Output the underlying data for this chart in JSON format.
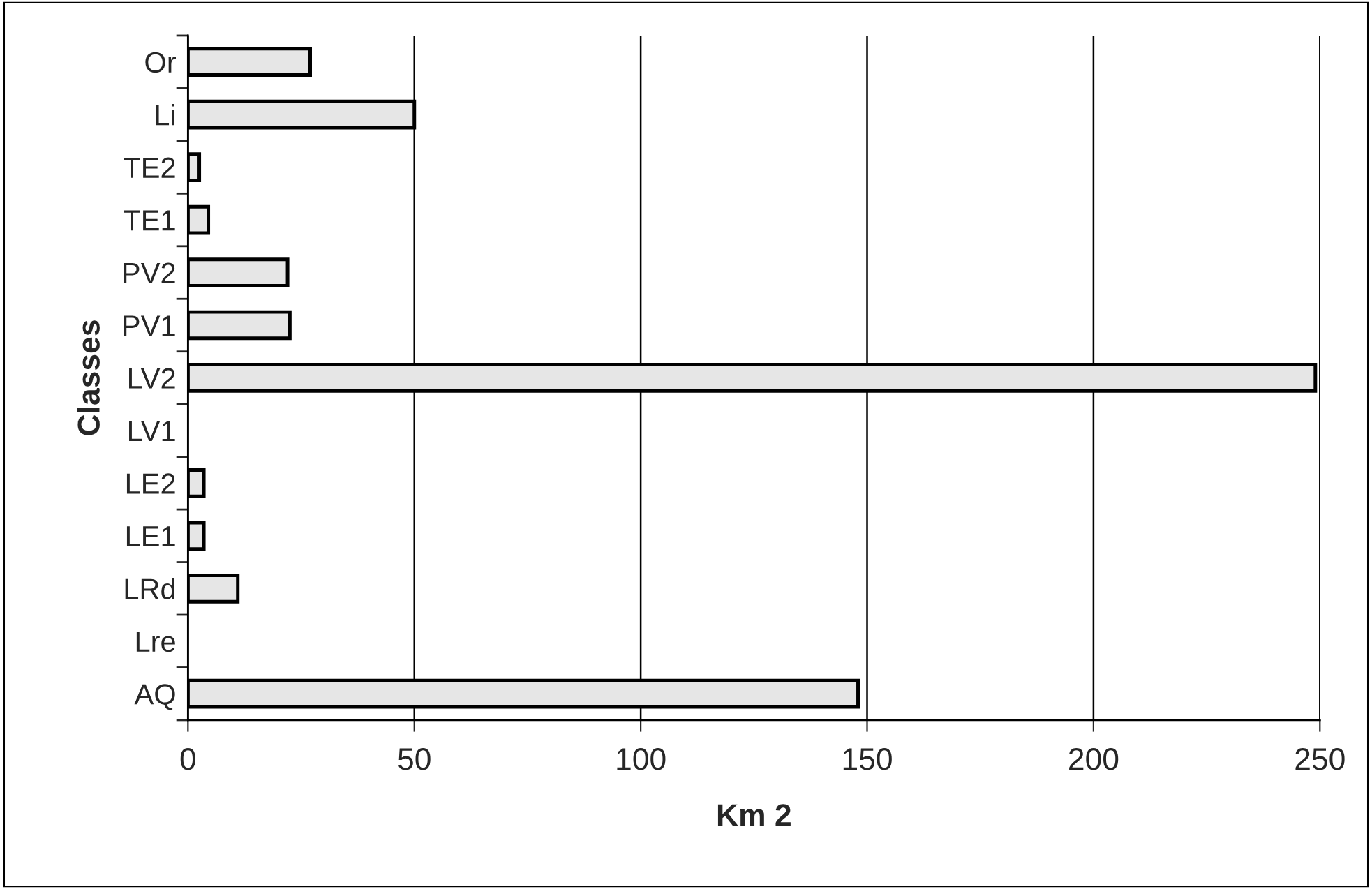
{
  "chart_data": {
    "type": "bar",
    "orientation": "horizontal",
    "xlabel": "Km 2",
    "ylabel": "Classes",
    "categories": [
      "Or",
      "Li",
      "TE2",
      "TE1",
      "PV2",
      "PV1",
      "LV2",
      "LV1",
      "LE2",
      "LE1",
      "LRd",
      "Lre",
      "AQ"
    ],
    "values": [
      27,
      50,
      2.5,
      4.5,
      22,
      22.5,
      249,
      0,
      3.5,
      3.5,
      11,
      0,
      148
    ],
    "color": "#e6e6e6",
    "xlim": [
      0,
      250
    ],
    "xticks": [
      0,
      50,
      100,
      150,
      200,
      250
    ],
    "grid": "x",
    "legend": false
  }
}
